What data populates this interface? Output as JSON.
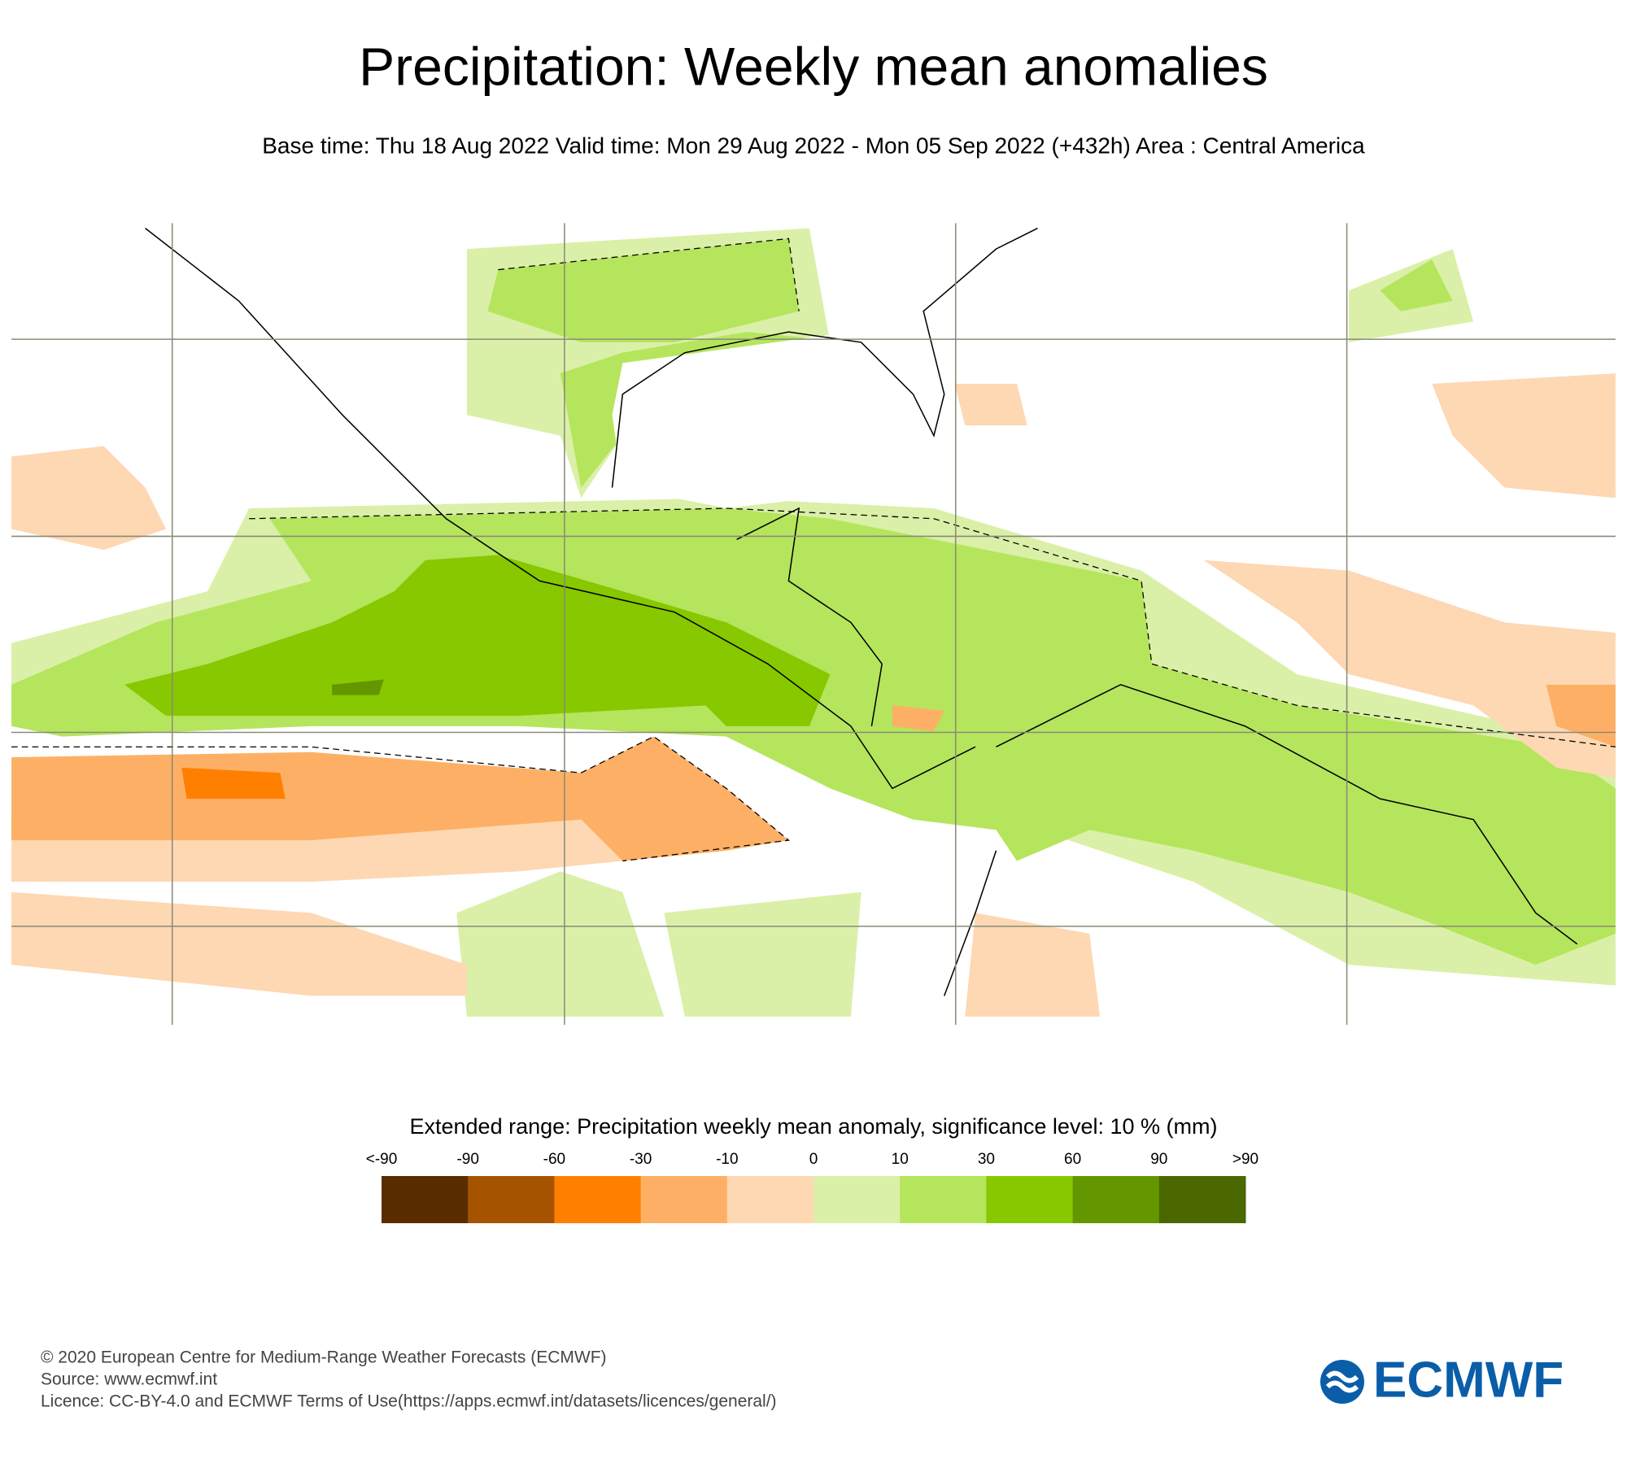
{
  "header": {
    "title": "Precipitation: Weekly mean anomalies",
    "subtitle": "Base time: Thu 18 Aug 2022 Valid time: Mon 29 Aug 2022 - Mon 05 Sep 2022 (+432h) Area : Central America"
  },
  "legend": {
    "title": "Extended range: Precipitation weekly mean anomaly, significance level: 10 % (mm)",
    "ticks": [
      "<-90",
      "-90",
      "-60",
      "-30",
      "-10",
      "0",
      "10",
      "30",
      "60",
      "90",
      ">90"
    ],
    "colors": [
      "#5a2d00",
      "#a65300",
      "#ff7f00",
      "#fdb065",
      "#fdd8b3",
      "#daf0a8",
      "#b5e55c",
      "#87c800",
      "#649600",
      "#4b6700"
    ]
  },
  "footer": {
    "lines": [
      "© 2020 European Centre for Medium-Range Weather Forecasts (ECMWF)",
      "Source: www.ecmwf.int",
      "Licence: CC-BY-4.0 and ECMWF Terms of Use(https://apps.ecmwf.int/datasets/licences/general/)"
    ],
    "logo": "ECMWF"
  }
}
